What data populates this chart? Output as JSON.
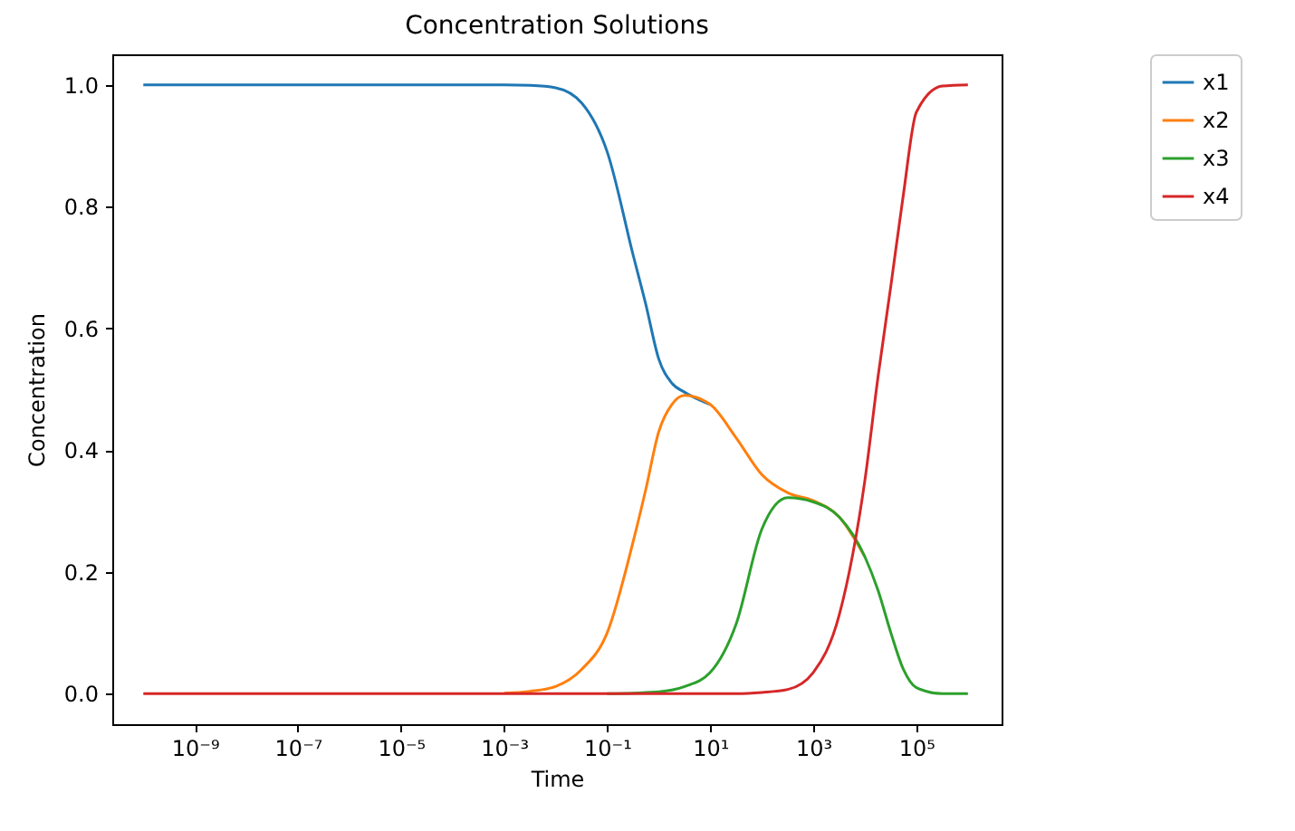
{
  "chart_data": {
    "type": "line",
    "title": "Concentration Solutions",
    "xlabel": "Time",
    "ylabel": "Concentration",
    "x": [
      1e-10,
      1e-08,
      1e-06,
      0.0001,
      0.001,
      0.0032,
      0.01,
      0.032,
      0.1,
      0.32,
      0.56,
      1,
      1.8,
      3.2,
      10,
      32,
      100,
      320,
      1000,
      3200,
      10000,
      18000,
      32000,
      56000,
      100000,
      320000,
      1000000
    ],
    "series": [
      {
        "name": "x1",
        "color": "#1f77b4",
        "values": [
          1,
          1,
          1,
          1,
          1,
          0.999,
          0.995,
          0.97,
          0.89,
          0.72,
          0.64,
          0.55,
          0.51,
          0.495,
          0.475,
          null,
          null,
          null,
          null,
          null,
          null,
          null,
          null,
          null,
          null,
          null,
          null
        ]
      },
      {
        "name": "x2",
        "color": "#ff7f0e",
        "values": [
          null,
          null,
          null,
          null,
          0.001,
          0.004,
          0.012,
          0.04,
          0.1,
          0.25,
          0.335,
          0.43,
          0.475,
          0.49,
          0.475,
          0.42,
          0.36,
          0.33,
          0.317,
          0.29,
          0.225,
          null,
          null,
          null,
          null,
          null,
          null
        ]
      },
      {
        "name": "x3",
        "color": "#2ca02c",
        "values": [
          null,
          null,
          null,
          null,
          null,
          null,
          null,
          null,
          0,
          0.001,
          0.002,
          0.003,
          0.006,
          0.012,
          0.035,
          0.115,
          0.27,
          0.322,
          0.315,
          0.29,
          0.225,
          0.17,
          0.1,
          0.04,
          0.01,
          0,
          0
        ]
      },
      {
        "name": "x4",
        "color": "#d62728",
        "values": [
          0,
          0,
          0,
          0,
          0,
          0,
          0,
          0,
          0,
          0,
          0,
          0,
          0,
          0,
          0,
          0,
          0.002,
          0.007,
          0.035,
          0.13,
          0.35,
          0.52,
          0.67,
          0.82,
          0.955,
          0.998,
          1
        ]
      }
    ],
    "log": "x",
    "xlim": [
      2.5e-11,
      4500000.0
    ],
    "xticks": [
      {
        "value": 1e-09,
        "label": "10⁻⁹"
      },
      {
        "value": 1e-07,
        "label": "10⁻⁷"
      },
      {
        "value": 1e-05,
        "label": "10⁻⁵"
      },
      {
        "value": 0.001,
        "label": "10⁻³"
      },
      {
        "value": 0.1,
        "label": "10⁻¹"
      },
      {
        "value": 10,
        "label": "10¹"
      },
      {
        "value": 1000,
        "label": "10³"
      },
      {
        "value": 100000,
        "label": "10⁵"
      }
    ],
    "ylim": [
      -0.05,
      1.05
    ],
    "yticks": [
      {
        "value": 0,
        "label": "0.0"
      },
      {
        "value": 0.2,
        "label": "0.2"
      },
      {
        "value": 0.4,
        "label": "0.4"
      },
      {
        "value": 0.6,
        "label": "0.6"
      },
      {
        "value": 0.8,
        "label": "0.8"
      },
      {
        "value": 1,
        "label": "1.0"
      }
    ],
    "legend": "right",
    "grid": false,
    "marker": "none",
    "line_style": "solid"
  }
}
